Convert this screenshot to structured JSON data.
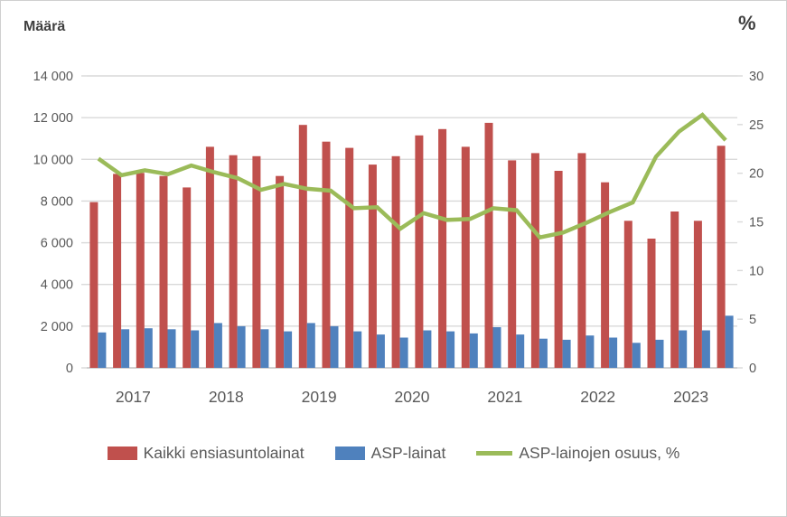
{
  "header": {
    "left_axis_title": "Määrä",
    "right_axis_title": "%"
  },
  "chart_data": {
    "type": "bar+line combo, quarterly",
    "grid": true,
    "legend_position": "bottom",
    "grid_color": "#d9d9d9",
    "axis_line_color": "#c3c3c3",
    "text_color": "#595959",
    "x_axis": {
      "year_labels": [
        "2017",
        "2018",
        "2019",
        "2020",
        "2021",
        "2022",
        "2023"
      ],
      "quarters_per_year": 4
    },
    "categories": [
      "2017 Q1",
      "2017 Q2",
      "2017 Q3",
      "2017 Q4",
      "2018 Q1",
      "2018 Q2",
      "2018 Q3",
      "2018 Q4",
      "2019 Q1",
      "2019 Q2",
      "2019 Q3",
      "2019 Q4",
      "2020 Q1",
      "2020 Q2",
      "2020 Q3",
      "2020 Q4",
      "2021 Q1",
      "2021 Q2",
      "2021 Q3",
      "2021 Q4",
      "2022 Q1",
      "2022 Q2",
      "2022 Q3",
      "2022 Q4",
      "2023 Q1",
      "2023 Q2",
      "2023 Q3",
      "2023 Q4"
    ],
    "left_axis": {
      "title": "Määrä",
      "min": 0,
      "max": 14000,
      "step": 2000,
      "tick_labels": [
        "0",
        "2 000",
        "4 000",
        "6 000",
        "8 000",
        "10 000",
        "12 000",
        "14 000"
      ]
    },
    "right_axis": {
      "title": "%",
      "min": 0,
      "max": 30,
      "step": 5,
      "tick_labels": [
        "0",
        "5",
        "10",
        "15",
        "20",
        "25",
        "30"
      ]
    },
    "series": [
      {
        "name": "Kaikki ensiasuntolainat",
        "type": "bar",
        "axis": "left",
        "color": "#c0504d",
        "values": [
          7950,
          9300,
          9350,
          9200,
          8650,
          10600,
          10200,
          10150,
          9200,
          11650,
          10850,
          10550,
          9750,
          10150,
          11150,
          11450,
          10600,
          11750,
          9950,
          10300,
          9450,
          10300,
          8900,
          7050,
          6200,
          7500,
          7050,
          10650
        ]
      },
      {
        "name": "ASP-lainat",
        "type": "bar",
        "axis": "left",
        "color": "#4f81bd",
        "values": [
          1700,
          1850,
          1900,
          1850,
          1800,
          2150,
          2000,
          1850,
          1750,
          2150,
          2000,
          1750,
          1600,
          1450,
          1800,
          1750,
          1650,
          1950,
          1600,
          1400,
          1350,
          1550,
          1450,
          1200,
          1350,
          1800,
          1800,
          2500
        ]
      },
      {
        "name": "ASP-lainojen osuus, %",
        "type": "line",
        "axis": "right",
        "color": "#9bbb59",
        "values": [
          21.5,
          19.8,
          20.3,
          19.9,
          20.8,
          20.1,
          19.5,
          18.3,
          18.9,
          18.4,
          18.2,
          16.4,
          16.5,
          14.3,
          15.9,
          15.2,
          15.3,
          16.4,
          16.2,
          13.4,
          13.9,
          14.9,
          16.0,
          17.0,
          21.7,
          24.3,
          26.0,
          23.4
        ]
      }
    ]
  }
}
